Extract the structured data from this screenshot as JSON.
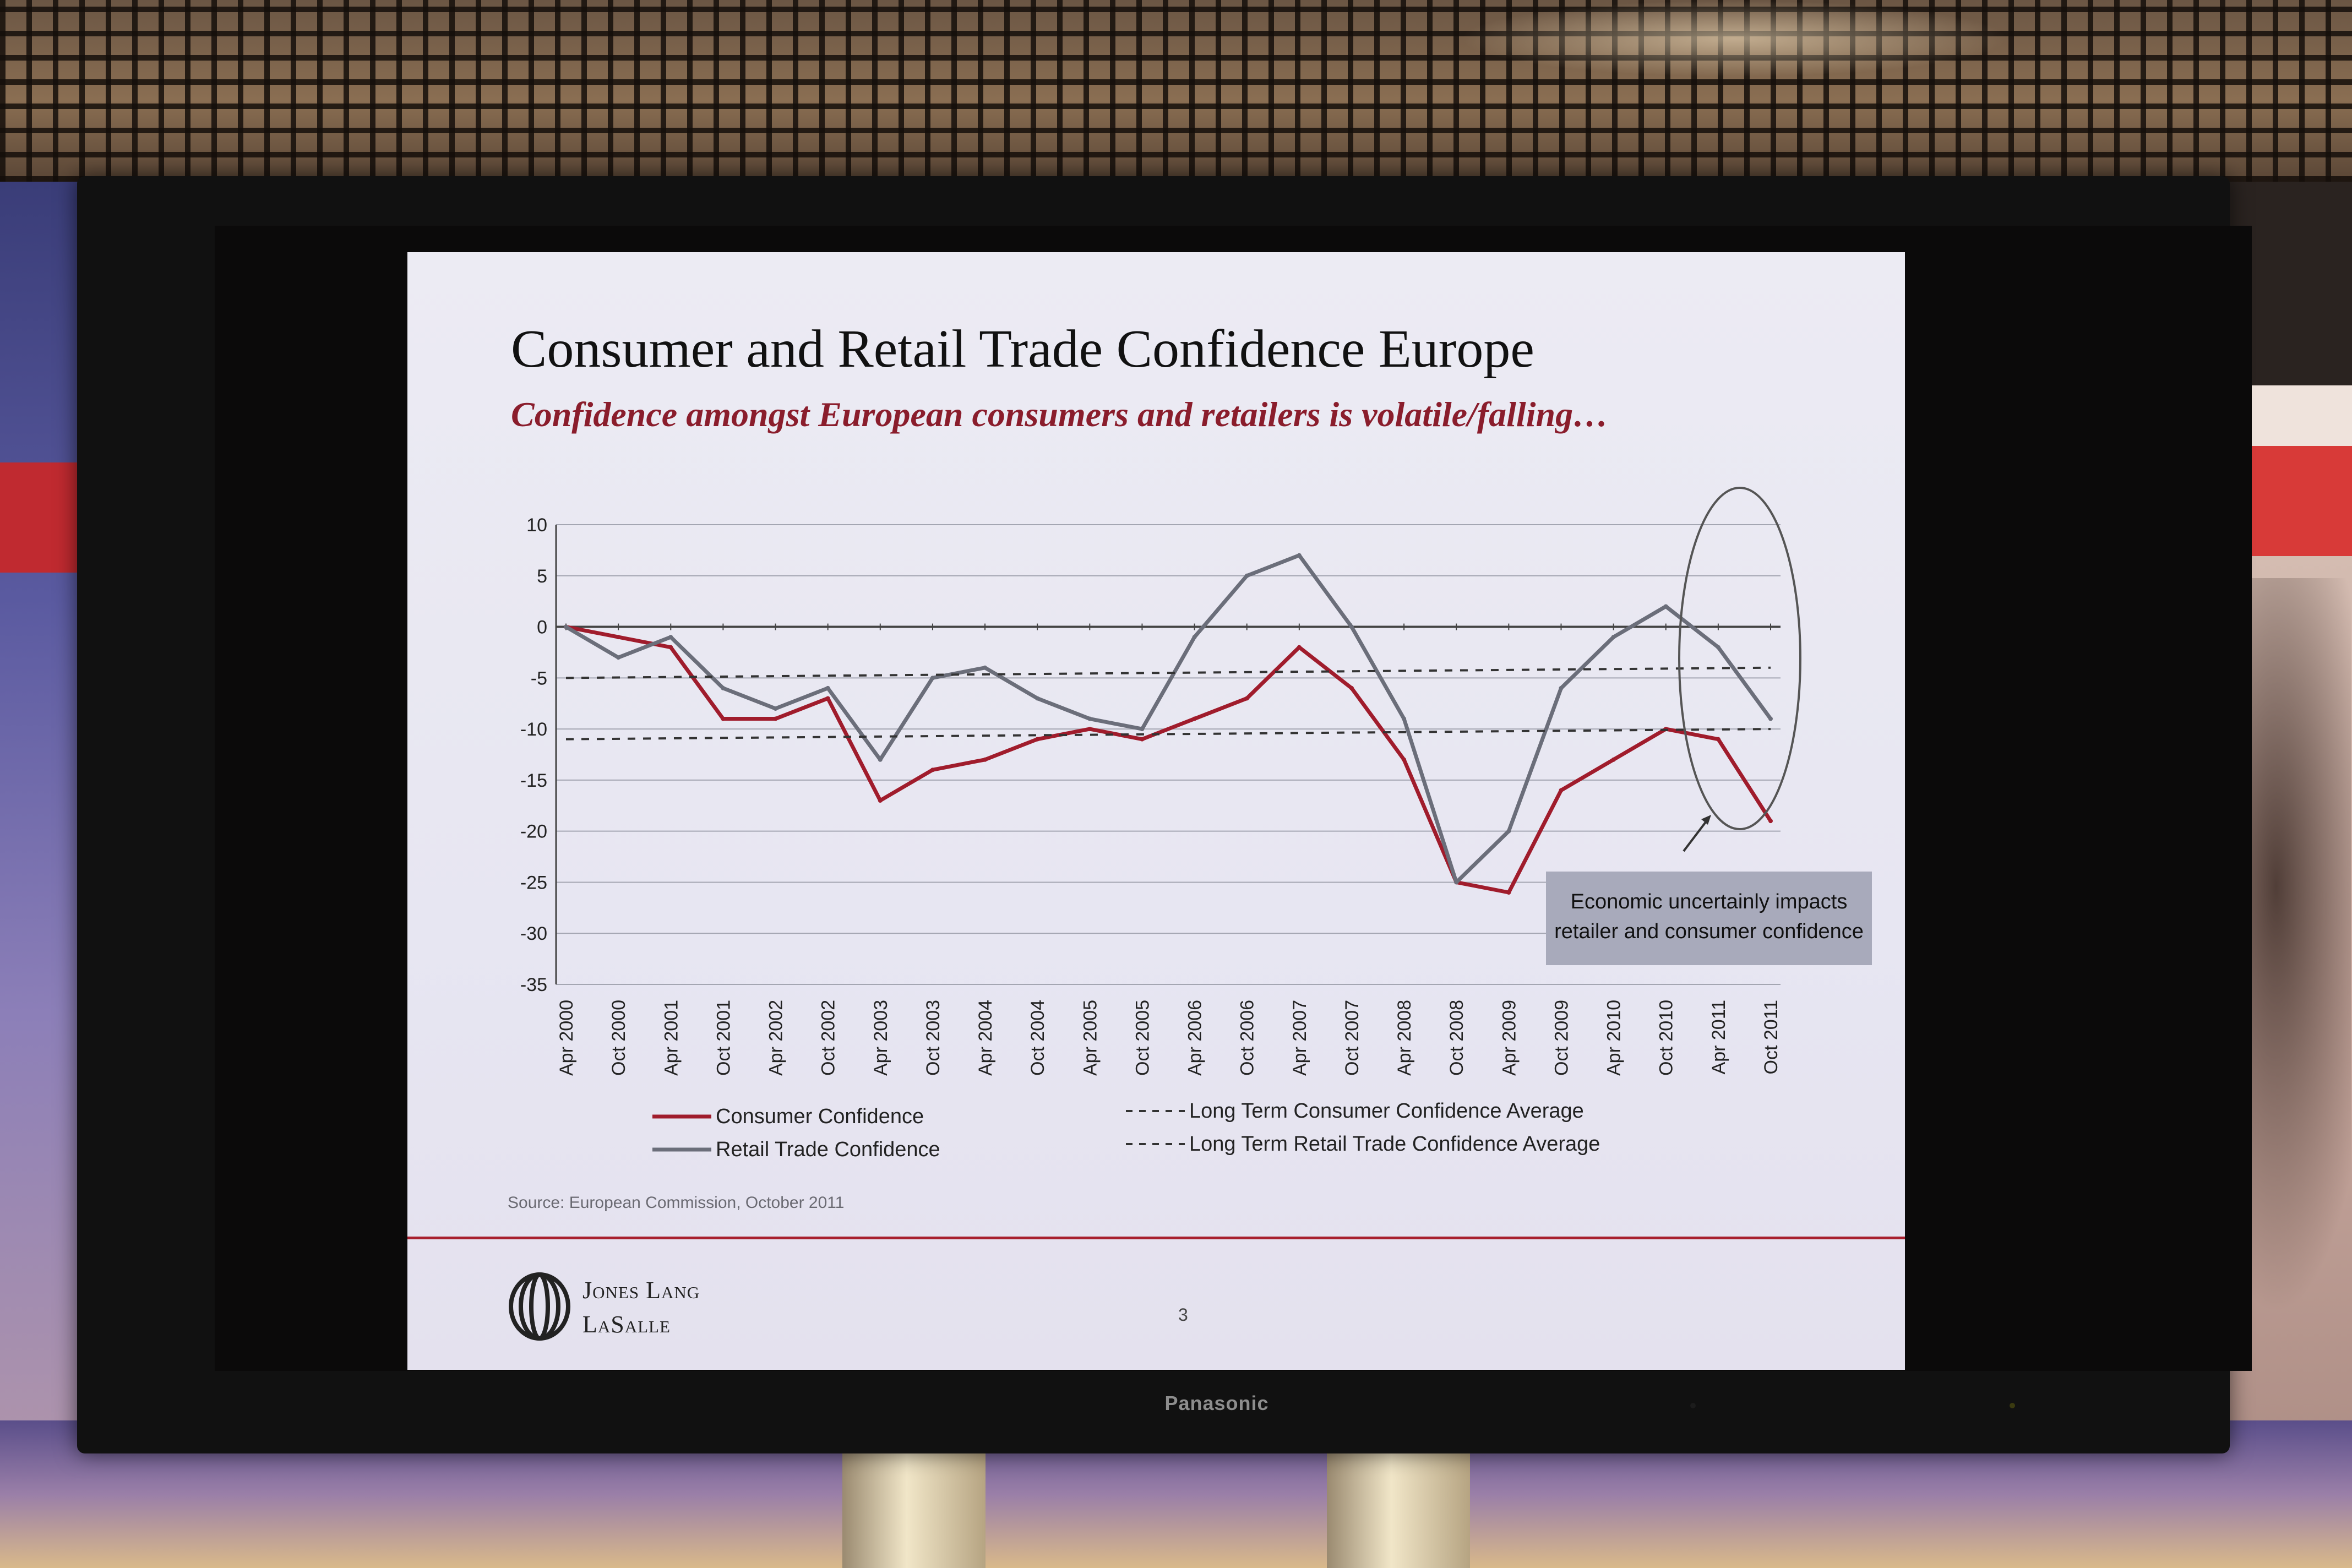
{
  "screen": {
    "brand": "Panasonic"
  },
  "slide": {
    "title": "Consumer and Retail Trade Confidence Europe",
    "subtitle": "Confidence amongst European consumers and retailers is volatile/falling…",
    "source": "Source: European Commission, October 2011",
    "callout_line1": "Economic uncertainly impacts",
    "callout_line2": "retailer and consumer confidence",
    "company_line1": "Jones Lang",
    "company_line2": "LaSalle",
    "page_number": "3"
  },
  "colors": {
    "consumer": "#a01c2c",
    "retail": "#6b6e7a",
    "title": "#111111",
    "subtitle": "#8a1d2c",
    "accent_rule": "#a81f2e"
  },
  "chart_data": {
    "type": "line",
    "title": "",
    "xlabel": "",
    "ylabel": "",
    "ylim": [
      -35,
      10
    ],
    "yticks": [
      10,
      5,
      0,
      -5,
      -10,
      -15,
      -20,
      -25,
      -30,
      -35
    ],
    "x_tick_labels": [
      "Apr 2000",
      "Oct 2000",
      "Apr 2001",
      "Oct 2001",
      "Apr 2002",
      "Oct 2002",
      "Apr 2003",
      "Oct 2003",
      "Apr 2004",
      "Oct 2004",
      "Apr 2005",
      "Oct 2005",
      "Apr 2006",
      "Oct 2006",
      "Apr 2007",
      "Oct 2007",
      "Apr 2008",
      "Oct 2008",
      "Apr 2009",
      "Oct 2009",
      "Apr 2010",
      "Oct 2010",
      "Apr 2011",
      "Oct 2011"
    ],
    "grid": true,
    "legend_position": "bottom",
    "series": [
      {
        "name": "Consumer Confidence",
        "style": "solid",
        "x": [
          "Apr 2000",
          "Oct 2000",
          "Apr 2001",
          "Oct 2001",
          "Apr 2002",
          "Oct 2002",
          "Apr 2003",
          "Oct 2003",
          "Apr 2004",
          "Oct 2004",
          "Apr 2005",
          "Oct 2005",
          "Apr 2006",
          "Oct 2006",
          "Apr 2007",
          "Oct 2007",
          "Apr 2008",
          "Oct 2008",
          "Apr 2009",
          "Oct 2009",
          "Apr 2010",
          "Oct 2010",
          "Apr 2011",
          "Oct 2011"
        ],
        "values": [
          0,
          -1,
          -2,
          -9,
          -9,
          -7,
          -17,
          -14,
          -13,
          -11,
          -10,
          -11,
          -9,
          -7,
          -2,
          -6,
          -13,
          -25,
          -26,
          -16,
          -13,
          -10,
          -11,
          -19
        ]
      },
      {
        "name": "Retail Trade Confidence",
        "style": "solid",
        "x": [
          "Apr 2000",
          "Oct 2000",
          "Apr 2001",
          "Oct 2001",
          "Apr 2002",
          "Oct 2002",
          "Apr 2003",
          "Oct 2003",
          "Apr 2004",
          "Oct 2004",
          "Apr 2005",
          "Oct 2005",
          "Apr 2006",
          "Oct 2006",
          "Apr 2007",
          "Oct 2007",
          "Apr 2008",
          "Oct 2008",
          "Apr 2009",
          "Oct 2009",
          "Apr 2010",
          "Oct 2010",
          "Apr 2011",
          "Oct 2011"
        ],
        "values": [
          0,
          -3,
          -1,
          -6,
          -8,
          -6,
          -13,
          -5,
          -4,
          -7,
          -9,
          -10,
          -1,
          5,
          7,
          0,
          -9,
          -25,
          -20,
          -6,
          -1,
          2,
          -2,
          -9
        ]
      },
      {
        "name": "Long Term Consumer Confidence Average",
        "style": "dashed",
        "x": [
          "Apr 2000",
          "Oct 2011"
        ],
        "values": [
          -11,
          -10
        ]
      },
      {
        "name": "Long Term Retail Trade Confidence Average",
        "style": "dashed",
        "x": [
          "Apr 2000",
          "Oct 2011"
        ],
        "values": [
          -5,
          -4
        ]
      }
    ]
  }
}
